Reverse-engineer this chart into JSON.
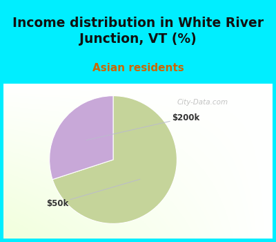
{
  "title": "Income distribution in White River\nJunction, VT (%)",
  "subtitle": "Asian residents",
  "slices": [
    {
      "label": "$50k",
      "value": 70,
      "color": "#c5d49a"
    },
    {
      "label": "$200k",
      "value": 30,
      "color": "#c8a8d8"
    }
  ],
  "title_fontsize": 13.5,
  "subtitle_fontsize": 11,
  "title_color": "#111111",
  "subtitle_color": "#cc6600",
  "bg_cyan": "#00eeff",
  "startangle": 90,
  "label_200k_color": "#333333",
  "label_50k_color": "#333333",
  "watermark": "City-Data.com",
  "watermark_color": "#aaaaaa"
}
